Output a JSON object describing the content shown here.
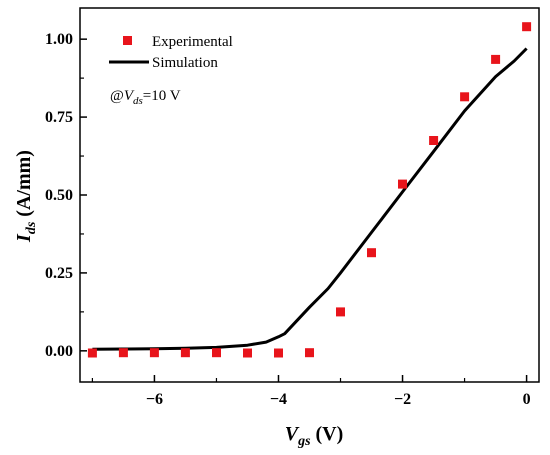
{
  "chart_data": {
    "type": "scatter",
    "xlabel": {
      "main": "V",
      "sub": "gs",
      "unit": " (V)"
    },
    "ylabel": {
      "main": "I",
      "sub": "ds",
      "unit": " (A/mm)"
    },
    "xlim": [
      -7.2,
      0.2
    ],
    "ylim": [
      -0.1,
      1.1
    ],
    "xticks": [
      -6,
      -4,
      -2,
      0
    ],
    "xtick_labels": [
      "−6",
      "−4",
      "−2",
      "0"
    ],
    "yticks": [
      0.0,
      0.25,
      0.5,
      0.75,
      1.0
    ],
    "ytick_labels": [
      "0.00",
      "0.25",
      "0.50",
      "0.75",
      "1.00"
    ],
    "grid": false,
    "legend_position": "top-left",
    "series": [
      {
        "name": "Experimental",
        "kind": "markers",
        "color": "#e8141b",
        "x": [
          -7.0,
          -6.5,
          -6.0,
          -5.5,
          -5.0,
          -4.5,
          -4.0,
          -3.5,
          -3.0,
          -2.5,
          -2.0,
          -1.5,
          -1.0,
          -0.5,
          0.0
        ],
        "y": [
          -0.007,
          -0.006,
          -0.006,
          -0.006,
          -0.006,
          -0.007,
          -0.007,
          -0.006,
          0.125,
          0.315,
          0.535,
          0.675,
          0.815,
          0.935,
          1.04
        ]
      },
      {
        "name": "Simulation",
        "kind": "line",
        "color": "#000000",
        "x": [
          -7.0,
          -6.5,
          -6.0,
          -5.5,
          -5.0,
          -4.5,
          -4.2,
          -4.0,
          -3.9,
          -3.5,
          -3.2,
          -3.0,
          -2.5,
          -2.0,
          -1.5,
          -1.0,
          -0.5,
          -0.2,
          0.0
        ],
        "y": [
          0.005,
          0.006,
          0.007,
          0.008,
          0.011,
          0.018,
          0.028,
          0.045,
          0.055,
          0.14,
          0.2,
          0.25,
          0.38,
          0.51,
          0.64,
          0.77,
          0.88,
          0.93,
          0.97
        ]
      }
    ],
    "annotation": {
      "prefix": "@",
      "main": "V",
      "sub": "ds",
      "suffix": "=10 V"
    }
  }
}
